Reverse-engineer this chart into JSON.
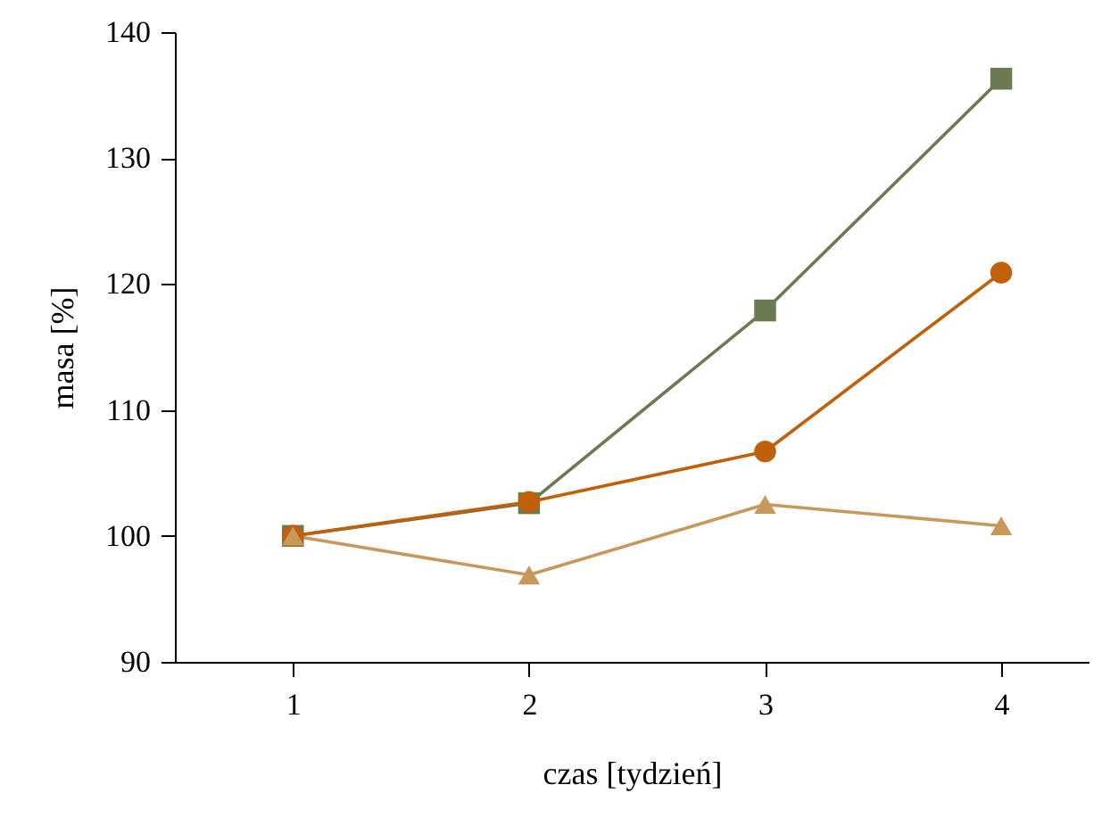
{
  "chart_data": {
    "type": "line",
    "xlabel": "czas [tydzień]",
    "ylabel": "masa [%]",
    "x": [
      1,
      2,
      3,
      4
    ],
    "xlim": [
      0.5,
      4.37
    ],
    "xticks": [
      1,
      2,
      3,
      4
    ],
    "ylim": [
      90,
      140
    ],
    "yticks": [
      90,
      100,
      110,
      120,
      130,
      140
    ],
    "grid": false,
    "line_style": "solid",
    "series": [
      {
        "color": "#6b7a50",
        "marker": "square",
        "values": [
          100,
          102.6,
          117.9,
          136.3
        ]
      },
      {
        "color": "#c0600a",
        "marker": "circle",
        "values": [
          100,
          102.7,
          106.7,
          120.9
        ]
      },
      {
        "color": "#c8975a",
        "marker": "triangle",
        "values": [
          100,
          96.9,
          102.5,
          100.8
        ]
      }
    ]
  }
}
